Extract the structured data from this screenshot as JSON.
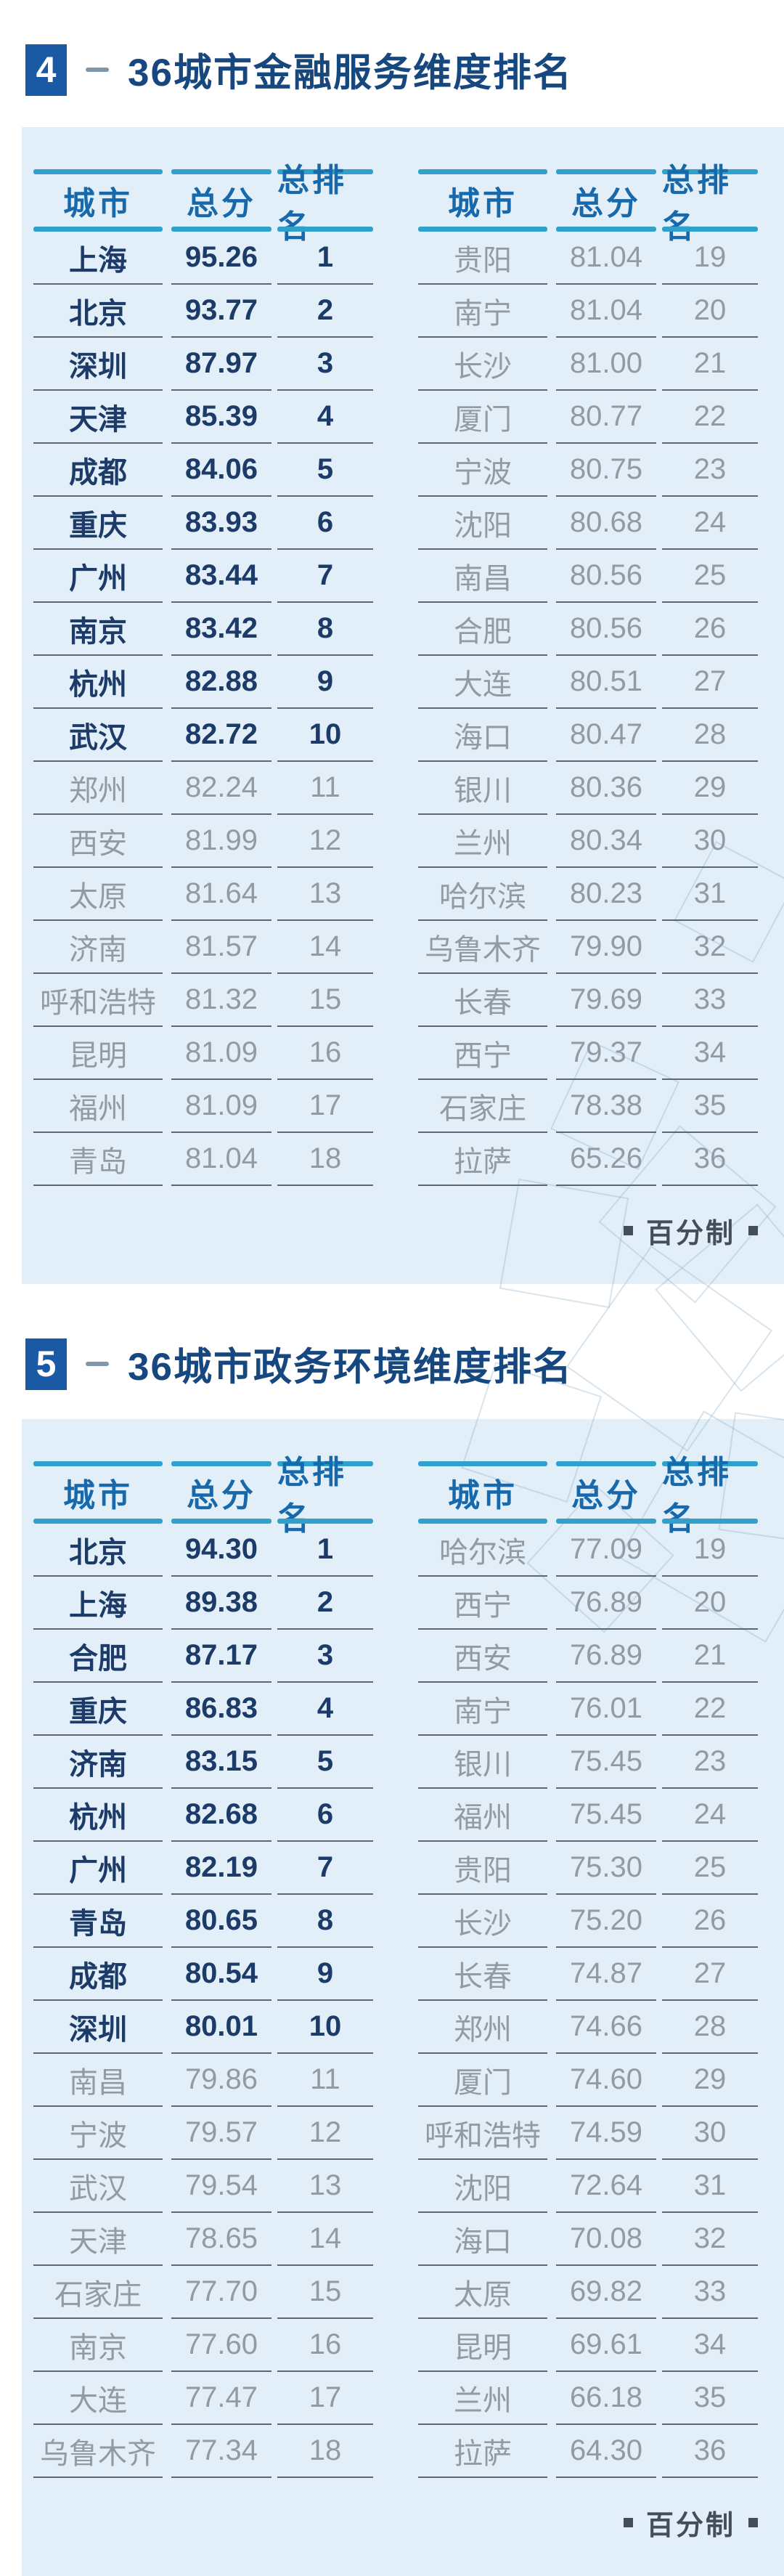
{
  "colors": {
    "badge_blue": "#1a5aa5",
    "title_blue": "#16477e",
    "header_text_blue": "#1769ab",
    "header_bar_teal": "#31a0cb",
    "top_row_navy": "#1d3b69",
    "normal_row_gray": "#939aa4",
    "card_background": "#e2eff8",
    "note_gray": "#434e59"
  },
  "sections": [
    {
      "number": "4",
      "title": "36城市金融服务维度排名",
      "note": "百分制",
      "columns": [
        "城市",
        "总分",
        "总排名"
      ],
      "rows_left": [
        [
          "上海",
          "95.26",
          1
        ],
        [
          "北京",
          "93.77",
          2
        ],
        [
          "深圳",
          "87.97",
          3
        ],
        [
          "天津",
          "85.39",
          4
        ],
        [
          "成都",
          "84.06",
          5
        ],
        [
          "重庆",
          "83.93",
          6
        ],
        [
          "广州",
          "83.44",
          7
        ],
        [
          "南京",
          "83.42",
          8
        ],
        [
          "杭州",
          "82.88",
          9
        ],
        [
          "武汉",
          "82.72",
          10
        ],
        [
          "郑州",
          "82.24",
          11
        ],
        [
          "西安",
          "81.99",
          12
        ],
        [
          "太原",
          "81.64",
          13
        ],
        [
          "济南",
          "81.57",
          14
        ],
        [
          "呼和浩特",
          "81.32",
          15
        ],
        [
          "昆明",
          "81.09",
          16
        ],
        [
          "福州",
          "81.09",
          17
        ],
        [
          "青岛",
          "81.04",
          18
        ]
      ],
      "rows_right": [
        [
          "贵阳",
          "81.04",
          19
        ],
        [
          "南宁",
          "81.04",
          20
        ],
        [
          "长沙",
          "81.00",
          21
        ],
        [
          "厦门",
          "80.77",
          22
        ],
        [
          "宁波",
          "80.75",
          23
        ],
        [
          "沈阳",
          "80.68",
          24
        ],
        [
          "南昌",
          "80.56",
          25
        ],
        [
          "合肥",
          "80.56",
          26
        ],
        [
          "大连",
          "80.51",
          27
        ],
        [
          "海口",
          "80.47",
          28
        ],
        [
          "银川",
          "80.36",
          29
        ],
        [
          "兰州",
          "80.34",
          30
        ],
        [
          "哈尔滨",
          "80.23",
          31
        ],
        [
          "乌鲁木齐",
          "79.90",
          32
        ],
        [
          "长春",
          "79.69",
          33
        ],
        [
          "西宁",
          "79.37",
          34
        ],
        [
          "石家庄",
          "78.38",
          35
        ],
        [
          "拉萨",
          "65.26",
          36
        ]
      ]
    },
    {
      "number": "5",
      "title": "36城市政务环境维度排名",
      "note": "百分制",
      "columns": [
        "城市",
        "总分",
        "总排名"
      ],
      "rows_left": [
        [
          "北京",
          "94.30",
          1
        ],
        [
          "上海",
          "89.38",
          2
        ],
        [
          "合肥",
          "87.17",
          3
        ],
        [
          "重庆",
          "86.83",
          4
        ],
        [
          "济南",
          "83.15",
          5
        ],
        [
          "杭州",
          "82.68",
          6
        ],
        [
          "广州",
          "82.19",
          7
        ],
        [
          "青岛",
          "80.65",
          8
        ],
        [
          "成都",
          "80.54",
          9
        ],
        [
          "深圳",
          "80.01",
          10
        ],
        [
          "南昌",
          "79.86",
          11
        ],
        [
          "宁波",
          "79.57",
          12
        ],
        [
          "武汉",
          "79.54",
          13
        ],
        [
          "天津",
          "78.65",
          14
        ],
        [
          "石家庄",
          "77.70",
          15
        ],
        [
          "南京",
          "77.60",
          16
        ],
        [
          "大连",
          "77.47",
          17
        ],
        [
          "乌鲁木齐",
          "77.34",
          18
        ]
      ],
      "rows_right": [
        [
          "哈尔滨",
          "77.09",
          19
        ],
        [
          "西宁",
          "76.89",
          20
        ],
        [
          "西安",
          "76.89",
          21
        ],
        [
          "南宁",
          "76.01",
          22
        ],
        [
          "银川",
          "75.45",
          23
        ],
        [
          "福州",
          "75.45",
          24
        ],
        [
          "贵阳",
          "75.30",
          25
        ],
        [
          "长沙",
          "75.20",
          26
        ],
        [
          "长春",
          "74.87",
          27
        ],
        [
          "郑州",
          "74.66",
          28
        ],
        [
          "厦门",
          "74.60",
          29
        ],
        [
          "呼和浩特",
          "74.59",
          30
        ],
        [
          "沈阳",
          "72.64",
          31
        ],
        [
          "海口",
          "70.08",
          32
        ],
        [
          "太原",
          "69.82",
          33
        ],
        [
          "昆明",
          "69.61",
          34
        ],
        [
          "兰州",
          "66.18",
          35
        ],
        [
          "拉萨",
          "64.30",
          36
        ]
      ]
    }
  ]
}
